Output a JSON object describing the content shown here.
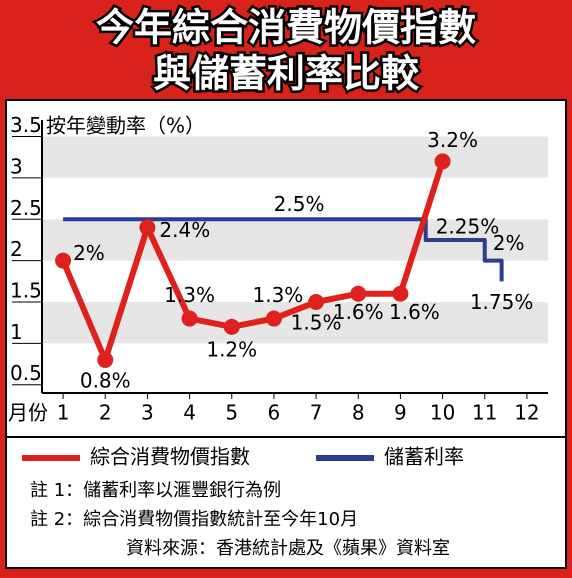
{
  "chart_data": {
    "type": "line",
    "title": [
      "今年綜合消費物價指數",
      "與儲蓄利率比較"
    ],
    "y_label": "按年變動率（%）",
    "x_label": "月份",
    "xlim": [
      0.5,
      12.5
    ],
    "xticks": [
      1,
      2,
      3,
      4,
      5,
      6,
      7,
      8,
      9,
      10,
      11,
      12
    ],
    "ylim": [
      0.4,
      3.7
    ],
    "yticks": [
      0.5,
      1,
      1.5,
      2,
      2.5,
      3,
      3.5
    ],
    "grid": "bands",
    "series": [
      {
        "name": "綜合消費物價指數",
        "color": "#e0201c",
        "x": [
          1,
          2,
          3,
          4,
          5,
          6,
          7,
          8,
          9,
          10
        ],
        "values": [
          2,
          0.8,
          2.4,
          1.3,
          1.2,
          1.3,
          1.5,
          1.6,
          1.6,
          3.2
        ],
        "value_labels": [
          "2%",
          "0.8%",
          "2.4%",
          "1.3%",
          "1.2%",
          "1.3%",
          "1.5%",
          "1.6%",
          "1.6%",
          "3.2%"
        ]
      },
      {
        "name": "儲蓄利率",
        "color": "#2b3d8f",
        "x": [
          1,
          9.6,
          9.6,
          11,
          11,
          11.4,
          11.4
        ],
        "values": [
          2.5,
          2.5,
          2.25,
          2.25,
          2,
          2,
          1.75
        ],
        "value_labels": [
          "2.5%",
          null,
          "2.25%",
          null,
          "2%",
          null,
          "1.75%"
        ]
      }
    ],
    "notes": [
      "註 1：儲蓄利率以滙豐銀行為例",
      "註 2：綜合消費物價指數統計至今年10月"
    ],
    "source": "資料來源：香港統計處及《蘋果》資料室"
  }
}
